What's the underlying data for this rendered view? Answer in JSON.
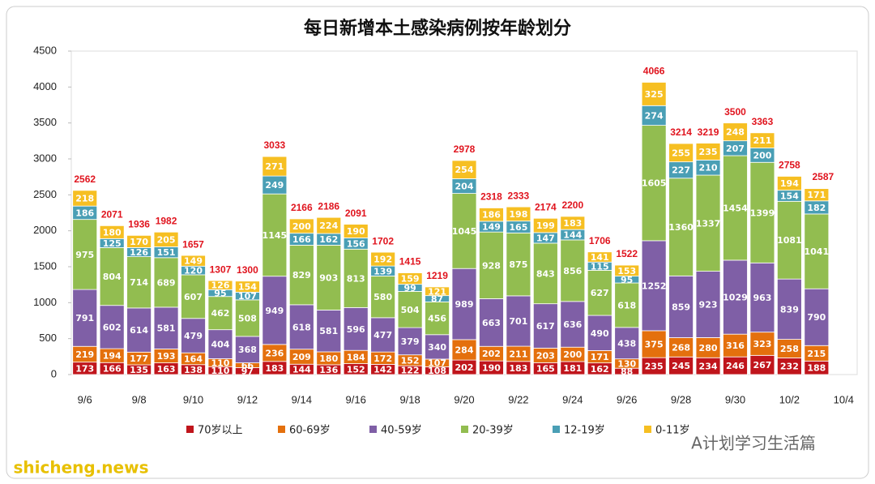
{
  "chart_data": {
    "type": "stacked-bar",
    "title": "每日新增本土感染病例按年龄划分",
    "categories": [
      "9/6",
      null,
      "9/8",
      null,
      "9/10",
      null,
      "9/12",
      null,
      "9/14",
      null,
      "9/16",
      null,
      "9/18",
      null,
      "9/20",
      null,
      "9/22",
      null,
      "9/24",
      null,
      "9/26",
      null,
      "9/28",
      null,
      "9/30",
      null,
      "10/2",
      null,
      "10/4"
    ],
    "series": [
      {
        "name": "70岁以上",
        "color": "#c0151c",
        "values": [
          173,
          166,
          135,
          163,
          138,
          110,
          97,
          183,
          144,
          136,
          152,
          142,
          122,
          108,
          202,
          190,
          183,
          165,
          181,
          162,
          88,
          235,
          245,
          234,
          246,
          267,
          232,
          188,
          null
        ]
      },
      {
        "name": "60-69岁",
        "color": "#e4700d",
        "values": [
          219,
          194,
          177,
          193,
          164,
          110,
          66,
          236,
          209,
          180,
          184,
          172,
          152,
          107,
          284,
          202,
          211,
          203,
          200,
          171,
          130,
          375,
          268,
          280,
          316,
          323,
          258,
          215,
          null
        ]
      },
      {
        "name": "40-59岁",
        "color": "#7f5fa6",
        "values": [
          791,
          602,
          614,
          581,
          479,
          404,
          368,
          949,
          618,
          581,
          596,
          477,
          379,
          340,
          989,
          663,
          701,
          617,
          636,
          490,
          438,
          1252,
          859,
          923,
          1029,
          963,
          839,
          790,
          null
        ]
      },
      {
        "name": "20-39岁",
        "color": "#92bd50",
        "values": [
          975,
          804,
          714,
          689,
          607,
          462,
          508,
          1145,
          829,
          903,
          813,
          580,
          504,
          456,
          1045,
          928,
          875,
          843,
          856,
          627,
          618,
          1605,
          1360,
          1337,
          1454,
          1399,
          1081,
          1041,
          null
        ]
      },
      {
        "name": "12-19岁",
        "color": "#4a9fb5",
        "values": [
          186,
          125,
          126,
          151,
          120,
          95,
          107,
          249,
          166,
          162,
          156,
          139,
          99,
          87,
          204,
          149,
          165,
          147,
          144,
          115,
          95,
          274,
          227,
          210,
          207,
          200,
          154,
          182,
          null
        ]
      },
      {
        "name": "0-11岁",
        "color": "#f6bf22",
        "values": [
          218,
          180,
          170,
          205,
          149,
          126,
          154,
          271,
          200,
          224,
          190,
          192,
          159,
          121,
          254,
          186,
          198,
          199,
          183,
          141,
          153,
          325,
          255,
          235,
          248,
          211,
          194,
          171,
          null
        ]
      }
    ],
    "totals": [
      2562,
      2071,
      1936,
      1982,
      1657,
      1307,
      1300,
      3033,
      2166,
      2186,
      2091,
      1702,
      1415,
      1219,
      2978,
      2318,
      2333,
      2174,
      2200,
      1706,
      1522,
      4066,
      3214,
      3219,
      3500,
      3363,
      2758,
      2587,
      null
    ],
    "ylim": [
      0,
      4500
    ],
    "yticks": [
      0,
      500,
      1000,
      1500,
      2000,
      2500,
      3000,
      3500,
      4000,
      4500
    ],
    "grid": false,
    "watermarks": [
      "A计划学习生活篇",
      "shicheng.news"
    ]
  }
}
